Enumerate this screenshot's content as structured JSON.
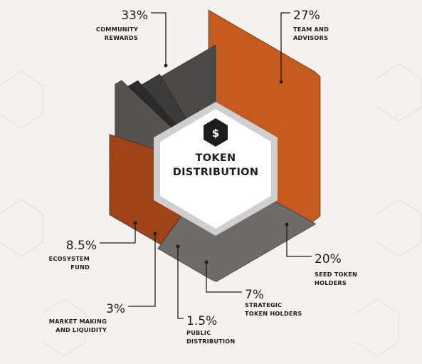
{
  "chart_data": {
    "type": "pie",
    "title": "TOKEN DISTRIBUTION",
    "title_lines": [
      "TOKEN",
      "DISTRIBUTION"
    ],
    "center_icon": "dollar-hexagon-icon",
    "slices": [
      {
        "value": 33,
        "label": "33%",
        "name_lines": [
          "COMMUNITY",
          "REWARDS"
        ],
        "color": "#c45a1e"
      },
      {
        "value": 27,
        "label": "27%",
        "name_lines": [
          "TEAM AND",
          "ADVISORS"
        ],
        "color": "#6e6c69"
      },
      {
        "value": 20,
        "label": "20%",
        "name_lines": [
          "SEED TOKEN",
          "HOLDERS"
        ],
        "color": "#9e4418"
      },
      {
        "value": 7,
        "label": "7%",
        "name_lines": [
          "STRATEGIC",
          "TOKEN HOLDERS"
        ],
        "color": "#555352"
      },
      {
        "value": 1.5,
        "label": "1.5%",
        "name_lines": [
          "PUBLIC",
          "DISTRIBUTION"
        ],
        "color": "#2a2a2a"
      },
      {
        "value": 3,
        "label": "3%",
        "name_lines": [
          "MARKET MAKING",
          "AND LIQUIDITY"
        ],
        "color": "#3b3b3b"
      },
      {
        "value": 8.5,
        "label": "8.5%",
        "name_lines": [
          "ECOSYSTEM",
          "FUND"
        ],
        "color": "#4a4948"
      }
    ]
  }
}
